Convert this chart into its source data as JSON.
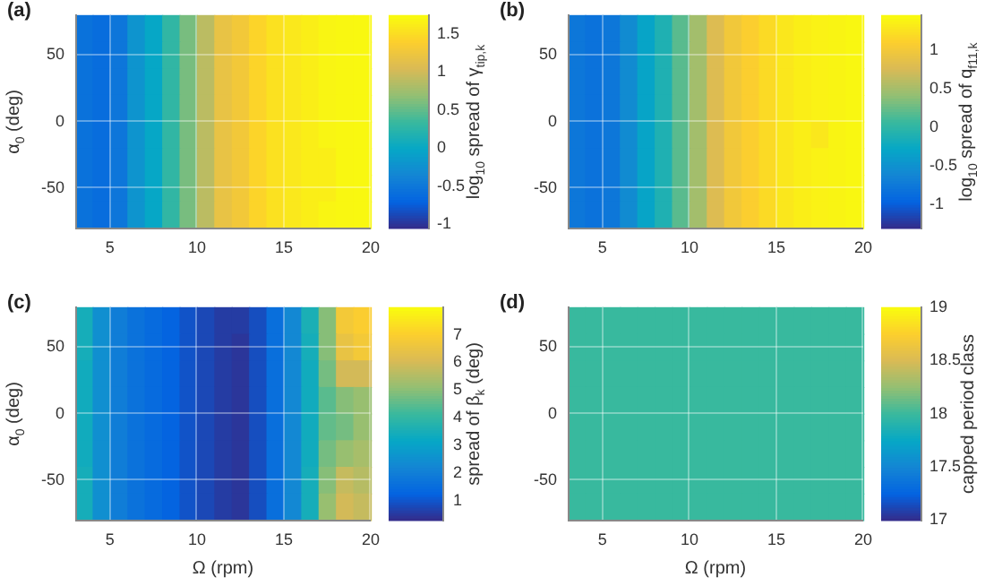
{
  "chart_data": [
    {
      "type": "heatmap",
      "title": "(a)",
      "ylabel": "α$_{0}$ (deg)",
      "clabel": "log$_{10}$ spread of γ$_{tip,k}$",
      "xlim": [
        3,
        20
      ],
      "xticks": [
        5,
        10,
        15,
        20
      ],
      "ylim": [
        -80,
        80
      ],
      "yticks": [
        -50,
        0,
        50
      ],
      "grid": true,
      "clim": [
        -1.05,
        1.75
      ],
      "cticks": [
        -1,
        -0.5,
        0,
        0.5,
        1,
        1.5
      ],
      "x": [
        3.5,
        4.5,
        5.5,
        6.5,
        7.5,
        8.5,
        9.5,
        10.5,
        11.5,
        12.5,
        13.5,
        14.5,
        15.5,
        16.5,
        17.5,
        18.5,
        19.5
      ],
      "y": [
        70,
        50,
        30,
        10,
        -10,
        -30,
        -50,
        -70
      ],
      "cells": [
        [
          -0.55,
          -0.6,
          -0.5,
          -0.2,
          0.0,
          0.3,
          0.6,
          0.9,
          1.2,
          1.3,
          1.45,
          1.55,
          1.6,
          1.65,
          1.7,
          1.72,
          1.73
        ],
        [
          -0.55,
          -0.6,
          -0.5,
          -0.2,
          0.0,
          0.3,
          0.6,
          0.9,
          1.2,
          1.3,
          1.45,
          1.55,
          1.6,
          1.65,
          1.7,
          1.72,
          1.73
        ],
        [
          -0.55,
          -0.6,
          -0.5,
          -0.2,
          0.0,
          0.3,
          0.6,
          0.9,
          1.2,
          1.3,
          1.45,
          1.55,
          1.6,
          1.65,
          1.7,
          1.72,
          1.73
        ],
        [
          -0.55,
          -0.6,
          -0.5,
          -0.2,
          0.0,
          0.3,
          0.6,
          0.9,
          1.2,
          1.3,
          1.45,
          1.55,
          1.6,
          1.65,
          1.7,
          1.72,
          1.73
        ],
        [
          -0.55,
          -0.6,
          -0.5,
          -0.2,
          0.0,
          0.3,
          0.6,
          0.9,
          1.2,
          1.3,
          1.45,
          1.55,
          1.6,
          1.65,
          1.7,
          1.72,
          1.73
        ],
        [
          -0.55,
          -0.6,
          -0.5,
          -0.2,
          0.0,
          0.3,
          0.6,
          0.9,
          1.2,
          1.3,
          1.45,
          1.55,
          1.6,
          1.65,
          1.65,
          1.72,
          1.73
        ],
        [
          -0.55,
          -0.6,
          -0.5,
          -0.2,
          0.0,
          0.3,
          0.6,
          0.9,
          1.2,
          1.3,
          1.45,
          1.55,
          1.6,
          1.65,
          1.65,
          1.72,
          1.73
        ],
        [
          -0.55,
          -0.6,
          -0.5,
          -0.2,
          0.0,
          0.3,
          0.6,
          0.9,
          1.2,
          1.3,
          1.45,
          1.55,
          1.6,
          1.65,
          1.7,
          1.72,
          1.73
        ]
      ]
    },
    {
      "type": "heatmap",
      "title": "(b)",
      "clabel": "log$_{10}$ spread of q$_{f11,k}$",
      "xlim": [
        3,
        20
      ],
      "xticks": [
        5,
        10,
        15,
        20
      ],
      "ylim": [
        -80,
        80
      ],
      "yticks": [
        -50,
        0,
        50
      ],
      "grid": true,
      "clim": [
        -1.3,
        1.45
      ],
      "cticks": [
        -1,
        -0.5,
        0,
        0.5,
        1
      ],
      "x": [
        3.5,
        4.5,
        5.5,
        6.5,
        7.5,
        8.5,
        9.5,
        10.5,
        11.5,
        12.5,
        13.5,
        14.5,
        15.5,
        16.5,
        17.5,
        18.5,
        19.5
      ],
      "y": [
        70,
        50,
        30,
        10,
        -10,
        -30,
        -50,
        -70
      ],
      "cells": [
        [
          -0.75,
          -0.8,
          -0.75,
          -0.55,
          -0.3,
          -0.1,
          0.2,
          0.5,
          0.8,
          1.0,
          1.1,
          1.2,
          1.3,
          1.35,
          1.38,
          1.4,
          1.42
        ],
        [
          -0.75,
          -0.8,
          -0.75,
          -0.55,
          -0.3,
          -0.1,
          0.2,
          0.5,
          0.8,
          1.0,
          1.1,
          1.2,
          1.3,
          1.35,
          1.38,
          1.4,
          1.42
        ],
        [
          -0.75,
          -0.8,
          -0.75,
          -0.55,
          -0.3,
          -0.1,
          0.2,
          0.5,
          0.8,
          1.0,
          1.1,
          1.2,
          1.3,
          1.35,
          1.38,
          1.4,
          1.42
        ],
        [
          -0.75,
          -0.8,
          -0.75,
          -0.55,
          -0.3,
          -0.1,
          0.2,
          0.5,
          0.8,
          1.0,
          1.1,
          1.2,
          1.3,
          1.35,
          1.38,
          1.4,
          1.42
        ],
        [
          -0.75,
          -0.8,
          -0.75,
          -0.55,
          -0.3,
          -0.1,
          0.2,
          0.5,
          0.8,
          1.0,
          1.1,
          1.2,
          1.3,
          1.35,
          1.3,
          1.4,
          1.42
        ],
        [
          -0.75,
          -0.8,
          -0.75,
          -0.55,
          -0.3,
          -0.1,
          0.2,
          0.5,
          0.8,
          1.0,
          1.1,
          1.2,
          1.3,
          1.35,
          1.38,
          1.4,
          1.42
        ],
        [
          -0.75,
          -0.8,
          -0.75,
          -0.55,
          -0.3,
          -0.1,
          0.2,
          0.5,
          0.8,
          1.0,
          1.1,
          1.2,
          1.3,
          1.35,
          1.38,
          1.4,
          1.42
        ],
        [
          -0.75,
          -0.8,
          -0.75,
          -0.55,
          -0.3,
          -0.1,
          0.2,
          0.5,
          0.8,
          1.0,
          1.1,
          1.2,
          1.3,
          1.35,
          1.38,
          1.4,
          1.42
        ]
      ]
    },
    {
      "type": "heatmap",
      "title": "(c)",
      "xlabel": "Ω (rpm)",
      "ylabel": "α$_{0}$ (deg)",
      "clabel": "spread of β$_{k}$ (deg)",
      "xlim": [
        3,
        20
      ],
      "xticks": [
        5,
        10,
        15,
        20
      ],
      "ylim": [
        -80,
        80
      ],
      "yticks": [
        -50,
        0,
        50
      ],
      "grid": true,
      "clim": [
        0.3,
        8
      ],
      "cticks": [
        1,
        2,
        3,
        4,
        5,
        6,
        7
      ],
      "x": [
        3.5,
        4.5,
        5.5,
        6.5,
        7.5,
        8.5,
        9.5,
        10.5,
        11.5,
        12.5,
        13.5,
        14.5,
        15.5,
        16.5,
        17.5,
        18.5,
        19.5
      ],
      "y": [
        70,
        50,
        30,
        10,
        -10,
        -30,
        -50,
        -70
      ],
      "cells": [
        [
          3.5,
          2.5,
          2.0,
          1.7,
          1.5,
          1.3,
          1.0,
          0.8,
          0.6,
          0.6,
          0.9,
          1.6,
          2.3,
          3.6,
          5.0,
          6.8,
          7.0
        ],
        [
          3.5,
          2.5,
          2.0,
          1.7,
          1.5,
          1.3,
          1.0,
          0.8,
          0.6,
          0.5,
          0.9,
          1.6,
          2.3,
          3.5,
          5.0,
          6.5,
          6.8
        ],
        [
          3.4,
          2.5,
          2.0,
          1.7,
          1.5,
          1.3,
          1.0,
          0.8,
          0.6,
          0.5,
          0.9,
          1.6,
          2.3,
          3.4,
          4.8,
          6.0,
          6.0
        ],
        [
          3.4,
          2.5,
          2.0,
          1.7,
          1.5,
          1.3,
          1.0,
          0.8,
          0.6,
          0.5,
          0.9,
          1.6,
          2.3,
          3.4,
          4.5,
          5.0,
          5.2
        ],
        [
          3.4,
          2.5,
          2.0,
          1.7,
          1.5,
          1.3,
          1.0,
          0.8,
          0.6,
          0.5,
          0.9,
          1.6,
          2.3,
          3.4,
          4.6,
          4.8,
          5.2
        ],
        [
          3.4,
          2.5,
          2.0,
          1.7,
          1.5,
          1.3,
          1.0,
          0.8,
          0.6,
          0.5,
          0.9,
          1.6,
          2.3,
          3.4,
          4.8,
          5.2,
          5.4
        ],
        [
          3.5,
          2.5,
          2.0,
          1.7,
          1.5,
          1.3,
          1.0,
          0.8,
          0.6,
          0.5,
          0.9,
          1.6,
          2.3,
          3.5,
          5.0,
          5.8,
          5.6
        ],
        [
          3.5,
          2.5,
          2.0,
          1.7,
          1.5,
          1.3,
          1.0,
          0.8,
          0.6,
          0.5,
          0.9,
          1.6,
          2.3,
          3.5,
          5.2,
          6.0,
          5.8
        ]
      ]
    },
    {
      "type": "heatmap",
      "title": "(d)",
      "xlabel": "Ω (rpm)",
      "clabel": "capped period class",
      "xlim": [
        3,
        20
      ],
      "xticks": [
        5,
        10,
        15,
        20
      ],
      "ylim": [
        -80,
        80
      ],
      "yticks": [
        -50,
        0,
        50
      ],
      "grid": true,
      "clim": [
        17,
        19
      ],
      "cticks": [
        17,
        17.5,
        18,
        18.5,
        19
      ],
      "x": [
        3.5,
        4.5,
        5.5,
        6.5,
        7.5,
        8.5,
        9.5,
        10.5,
        11.5,
        12.5,
        13.5,
        14.5,
        15.5,
        16.5,
        17.5,
        18.5,
        19.5
      ],
      "y": [
        70,
        50,
        30,
        10,
        -10,
        -30,
        -50,
        -70
      ],
      "cells": [
        [
          18,
          18,
          18,
          18,
          18,
          18,
          18,
          18,
          18,
          18,
          18,
          18,
          18,
          18,
          18,
          18,
          18
        ],
        [
          18,
          18,
          18,
          18,
          18,
          18,
          18,
          18,
          18,
          18,
          18,
          18,
          18,
          18,
          18,
          18,
          18
        ],
        [
          18,
          18,
          18,
          18,
          18,
          18,
          18,
          18,
          18,
          18,
          18,
          18,
          18,
          18,
          18,
          18,
          18
        ],
        [
          18,
          18,
          18,
          18,
          18,
          18,
          18,
          18,
          18,
          18,
          18,
          18,
          18,
          18,
          18,
          18,
          18
        ],
        [
          18,
          18,
          18,
          18,
          18,
          18,
          18,
          18,
          18,
          18,
          18,
          18,
          18,
          18,
          18,
          18,
          18
        ],
        [
          18,
          18,
          18,
          18,
          18,
          18,
          18,
          18,
          18,
          18,
          18,
          18,
          18,
          18,
          18,
          18,
          18
        ],
        [
          18,
          18,
          18,
          18,
          18,
          18,
          18,
          18,
          18,
          18,
          18,
          18,
          18,
          18,
          18,
          18,
          18
        ],
        [
          18,
          18,
          18,
          18,
          18,
          18,
          18,
          18,
          18,
          18,
          18,
          18,
          18,
          18,
          18,
          18,
          18
        ]
      ]
    }
  ]
}
